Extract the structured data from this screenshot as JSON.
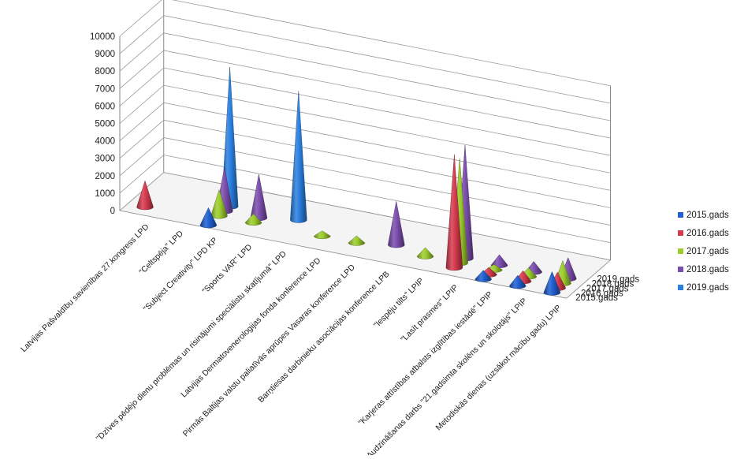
{
  "chart_data": {
    "type": "bar",
    "subtype": "3d-cone",
    "grid": true,
    "legend_position": "right",
    "y_ticks": [
      "0",
      "1000",
      "2000",
      "3000",
      "4000",
      "5000",
      "6000",
      "7000",
      "8000",
      "9000",
      "10000"
    ],
    "ylim": [
      0,
      10000
    ],
    "categories": [
      "Latvijas Pašvaldību savienības 27.kongress   LPD",
      "\"Celtspēja\"   LPD",
      "\"Subject Creativity\"   LPD KP",
      "\"Sports VAR\"   LPD",
      "\"Dzīves pēdējo dienu problēmas un risinājumi speciālistu skatījumā\"   LPD",
      "Latvijas Dermatovenerologijas fonda konference   LPD",
      "Pirmās Baltijas valstu paliatīvās aprūpes Vasaras konference   LPD",
      "Barņtiesas darbinieku asociācijas konference   LPB",
      "\"Iespēju tilts\"   LPIP",
      "\"Lasīt prasmes\"   LPIP",
      "\"Karjeras attīstības atbalsts izglītības iestādē\"   LPIP",
      "Audzināšanas darbs \"21.gadsimta skolēns un skolotājs\"   LPIP",
      "Metodiskās dienas (uzsākot mācību gadu)  LPIP"
    ],
    "depth_labels": [
      "2015.gads",
      "2016.gads",
      "2017.gads",
      "2018.gads",
      "2019.gads"
    ],
    "series": [
      {
        "name": "2015.gads",
        "color": "#1f5fd0",
        "values": [
          0,
          0,
          1000,
          0,
          0,
          0,
          0,
          0,
          0,
          0,
          500,
          600,
          1200
        ]
      },
      {
        "name": "2016.gads",
        "color": "#d63a4e",
        "values": [
          1500,
          0,
          0,
          0,
          0,
          0,
          0,
          0,
          0,
          6500,
          400,
          600,
          900
        ]
      },
      {
        "name": "2017.gads",
        "color": "#9ccc2e",
        "values": [
          0,
          0,
          1500,
          500,
          0,
          300,
          400,
          0,
          500,
          6000,
          300,
          500,
          1300
        ]
      },
      {
        "name": "2018.gads",
        "color": "#7b4dad",
        "values": [
          0,
          0,
          2500,
          2500,
          0,
          0,
          0,
          2500,
          0,
          6500,
          600,
          600,
          1200
        ]
      },
      {
        "name": "2019.gads",
        "color": "#2a7fdf",
        "values": [
          0,
          0,
          8000,
          0,
          7400,
          0,
          0,
          0,
          0,
          0,
          0,
          0,
          0
        ]
      }
    ]
  }
}
